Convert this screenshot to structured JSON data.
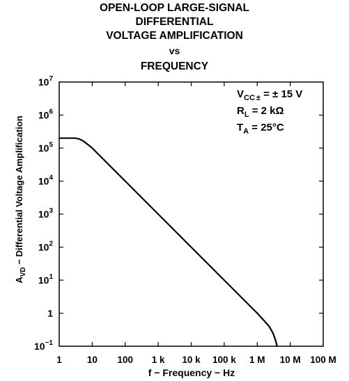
{
  "chart_data": {
    "type": "line",
    "title_lines": [
      "OPEN-LOOP LARGE-SIGNAL",
      "DIFFERENTIAL",
      "VOLTAGE AMPLIFICATION",
      "vs",
      "FREQUENCY"
    ],
    "xlabel": "f − Frequency − Hz",
    "ylabel": "A_VD − Differential Voltage Amplification",
    "x_scale": "log",
    "y_scale": "log",
    "xlim": [
      1,
      100000000
    ],
    "ylim": [
      0.1,
      10000000
    ],
    "x_ticks": [
      {
        "value": 1,
        "label": "1"
      },
      {
        "value": 10,
        "label": "10"
      },
      {
        "value": 100,
        "label": "100"
      },
      {
        "value": 1000,
        "label": "1 k"
      },
      {
        "value": 10000,
        "label": "10 k"
      },
      {
        "value": 100000,
        "label": "100 k"
      },
      {
        "value": 1000000,
        "label": "1 M"
      },
      {
        "value": 10000000,
        "label": "10 M"
      },
      {
        "value": 100000000,
        "label": "100 M"
      }
    ],
    "y_ticks": [
      {
        "value": 0.1,
        "base": "10",
        "exp": "−1"
      },
      {
        "value": 1,
        "base": "1",
        "exp": ""
      },
      {
        "value": 10,
        "base": "10",
        "exp": "1"
      },
      {
        "value": 100,
        "base": "10",
        "exp": "2"
      },
      {
        "value": 1000,
        "base": "10",
        "exp": "3"
      },
      {
        "value": 10000,
        "base": "10",
        "exp": "4"
      },
      {
        "value": 100000,
        "base": "10",
        "exp": "5"
      },
      {
        "value": 1000000,
        "base": "10",
        "exp": "6"
      },
      {
        "value": 10000000,
        "base": "10",
        "exp": "7"
      }
    ],
    "conditions": [
      {
        "main": "V",
        "sub": "CC",
        "sub2": "±",
        "rest": " = ± 15 V"
      },
      {
        "main": "R",
        "sub": "L",
        "sub2": "",
        "rest": " = 2 kΩ"
      },
      {
        "main": "T",
        "sub": "A",
        "sub2": "",
        "rest": " = 25°C"
      }
    ],
    "grid": false,
    "series": [
      {
        "x": [
          1,
          3,
          4,
          5,
          6,
          8,
          10,
          100,
          1000,
          10000,
          100000,
          1000000,
          1600000,
          2300000,
          3000000,
          3600000,
          4000000
        ],
        "y": [
          200000,
          200000,
          190000,
          170000,
          150000,
          120000,
          100000,
          10000,
          1000,
          100,
          10,
          1,
          0.6,
          0.4,
          0.25,
          0.15,
          0.1
        ]
      }
    ]
  }
}
